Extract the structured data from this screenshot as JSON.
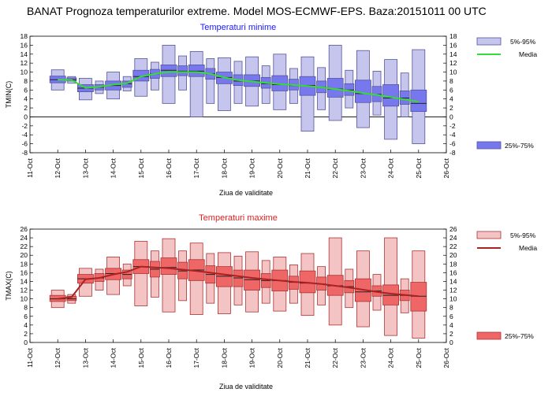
{
  "header": {
    "title": "BANAT  Prognoza temperaturilor extreme.  Model MOS-ECMWF-EPS. Baza:20151011 00 UTC"
  },
  "chart_data": [
    {
      "type": "box",
      "title": "Temperaturi minime",
      "title_color": "#1a1aff",
      "xlabel": "Ziua de validitate",
      "ylabel": "TMIN(C)",
      "x_tick_labels": [
        "11-Oct",
        "12-Oct",
        "13-Oct",
        "14-Oct",
        "15-Oct",
        "16-Oct",
        "17-Oct",
        "18-Oct",
        "19-Oct",
        "20-Oct",
        "21-Oct",
        "22-Oct",
        "23-Oct",
        "24-Oct",
        "25-Oct",
        "26-Oct"
      ],
      "ylim": [
        -8,
        18
      ],
      "y_ticks": [
        -8,
        -6,
        -4,
        -2,
        0,
        2,
        4,
        6,
        8,
        10,
        12,
        14,
        16,
        18
      ],
      "grid": false,
      "colors": {
        "light": "#c5c5ee",
        "dark": "#7777ee",
        "edge": "#555599",
        "median_line": "#33dd33"
      },
      "legend": {
        "outer_label": "5%-95%",
        "median_label": "Media",
        "inner_label": "25%-75%"
      },
      "boxes": [
        {
          "x": 12.0,
          "p5": 6.0,
          "p25": 7.6,
          "median": 8.3,
          "p75": 9.1,
          "p95": 10.5
        },
        {
          "x": 12.5,
          "p5": 7.5,
          "p25": 8.0,
          "median": 8.3,
          "p75": 8.7,
          "p95": 9.0
        },
        {
          "x": 13.0,
          "p5": 3.8,
          "p25": 5.6,
          "median": 6.4,
          "p75": 7.2,
          "p95": 8.6
        },
        {
          "x": 13.5,
          "p5": 5.2,
          "p25": 6.0,
          "median": 6.6,
          "p75": 7.2,
          "p95": 8.0
        },
        {
          "x": 14.0,
          "p5": 4.0,
          "p25": 6.0,
          "median": 7.0,
          "p75": 8.0,
          "p95": 10.0
        },
        {
          "x": 14.5,
          "p5": 5.8,
          "p25": 6.6,
          "median": 7.4,
          "p75": 8.0,
          "p95": 9.0
        },
        {
          "x": 15.0,
          "p5": 4.6,
          "p25": 8.0,
          "median": 9.0,
          "p75": 10.4,
          "p95": 13.0
        },
        {
          "x": 15.5,
          "p5": 6.0,
          "p25": 8.6,
          "median": 9.6,
          "p75": 10.6,
          "p95": 12.2
        },
        {
          "x": 16.0,
          "p5": 3.0,
          "p25": 9.0,
          "median": 10.4,
          "p75": 11.6,
          "p95": 16.0
        },
        {
          "x": 16.5,
          "p5": 6.0,
          "p25": 9.2,
          "median": 10.2,
          "p75": 11.4,
          "p95": 13.6
        },
        {
          "x": 17.0,
          "p5": 0.0,
          "p25": 9.0,
          "median": 10.2,
          "p75": 11.6,
          "p95": 14.6
        },
        {
          "x": 17.5,
          "p5": 3.0,
          "p25": 8.4,
          "median": 9.6,
          "p75": 10.8,
          "p95": 13.0
        },
        {
          "x": 18.0,
          "p5": 1.4,
          "p25": 7.4,
          "median": 8.8,
          "p75": 10.0,
          "p95": 13.2
        },
        {
          "x": 18.5,
          "p5": 3.0,
          "p25": 7.0,
          "median": 8.0,
          "p75": 9.4,
          "p95": 12.4
        },
        {
          "x": 19.0,
          "p5": 2.4,
          "p25": 6.8,
          "median": 8.0,
          "p75": 9.4,
          "p95": 13.4
        },
        {
          "x": 19.5,
          "p5": 3.0,
          "p25": 6.4,
          "median": 7.4,
          "p75": 8.8,
          "p95": 11.4
        },
        {
          "x": 20.0,
          "p5": 1.6,
          "p25": 5.8,
          "median": 7.2,
          "p75": 9.2,
          "p95": 14.0
        },
        {
          "x": 20.5,
          "p5": 3.0,
          "p25": 6.0,
          "median": 7.0,
          "p75": 8.4,
          "p95": 10.8
        },
        {
          "x": 21.0,
          "p5": -3.2,
          "p25": 4.8,
          "median": 7.0,
          "p75": 9.0,
          "p95": 13.4
        },
        {
          "x": 21.5,
          "p5": 1.6,
          "p25": 5.4,
          "median": 6.6,
          "p75": 8.0,
          "p95": 11.0
        },
        {
          "x": 22.0,
          "p5": -0.8,
          "p25": 4.4,
          "median": 6.2,
          "p75": 8.6,
          "p95": 16.0
        },
        {
          "x": 22.5,
          "p5": 2.0,
          "p25": 4.8,
          "median": 6.0,
          "p75": 7.4,
          "p95": 10.4
        },
        {
          "x": 23.0,
          "p5": -2.4,
          "p25": 3.2,
          "median": 5.2,
          "p75": 8.2,
          "p95": 14.8
        },
        {
          "x": 23.5,
          "p5": 0.4,
          "p25": 3.4,
          "median": 5.0,
          "p75": 6.8,
          "p95": 10.2
        },
        {
          "x": 24.0,
          "p5": -5.0,
          "p25": 2.4,
          "median": 4.2,
          "p75": 7.2,
          "p95": 12.8
        },
        {
          "x": 24.5,
          "p5": 0.0,
          "p25": 2.8,
          "median": 4.2,
          "p75": 5.8,
          "p95": 9.8
        },
        {
          "x": 25.0,
          "p5": -6.0,
          "p25": 1.2,
          "median": 3.0,
          "p75": 6.0,
          "p95": 15.0
        }
      ],
      "median_line": [
        {
          "x": 12.0,
          "y": 8.3
        },
        {
          "x": 12.5,
          "y": 8.2
        },
        {
          "x": 13.0,
          "y": 6.5
        },
        {
          "x": 13.5,
          "y": 6.7
        },
        {
          "x": 14.0,
          "y": 7.2
        },
        {
          "x": 14.5,
          "y": 7.5
        },
        {
          "x": 15.0,
          "y": 9.0
        },
        {
          "x": 15.5,
          "y": 9.6
        },
        {
          "x": 16.0,
          "y": 10.0
        },
        {
          "x": 16.5,
          "y": 10.0
        },
        {
          "x": 17.0,
          "y": 10.0
        },
        {
          "x": 17.5,
          "y": 9.6
        },
        {
          "x": 18.0,
          "y": 8.8
        },
        {
          "x": 18.5,
          "y": 8.2
        },
        {
          "x": 19.0,
          "y": 7.9
        },
        {
          "x": 19.5,
          "y": 7.6
        },
        {
          "x": 20.0,
          "y": 7.3
        },
        {
          "x": 20.5,
          "y": 7.1
        },
        {
          "x": 21.0,
          "y": 6.9
        },
        {
          "x": 21.5,
          "y": 6.6
        },
        {
          "x": 22.0,
          "y": 6.2
        },
        {
          "x": 22.5,
          "y": 5.8
        },
        {
          "x": 23.0,
          "y": 5.3
        },
        {
          "x": 23.5,
          "y": 4.9
        },
        {
          "x": 24.0,
          "y": 4.4
        },
        {
          "x": 24.5,
          "y": 3.9
        },
        {
          "x": 25.0,
          "y": 3.4
        }
      ]
    },
    {
      "type": "box",
      "title": "Temperaturi maxime",
      "title_color": "#dd2222",
      "xlabel": "Ziua de validitate",
      "ylabel": "TMAX(C)",
      "x_tick_labels": [
        "11-Oct",
        "12-Oct",
        "13-Oct",
        "14-Oct",
        "15-Oct",
        "16-Oct",
        "17-Oct",
        "18-Oct",
        "19-Oct",
        "20-Oct",
        "21-Oct",
        "22-Oct",
        "23-Oct",
        "24-Oct",
        "25-Oct",
        "26-Oct"
      ],
      "ylim": [
        0,
        26
      ],
      "y_ticks": [
        0,
        2,
        4,
        6,
        8,
        10,
        12,
        14,
        16,
        18,
        20,
        22,
        24,
        26
      ],
      "grid": false,
      "colors": {
        "light": "#f4c4c4",
        "dark": "#ee6666",
        "edge": "#aa3333",
        "median_line": "#aa2222"
      },
      "legend": {
        "outer_label": "5%-95%",
        "median_label": "Media",
        "inner_label": "25%-75%"
      },
      "boxes": [
        {
          "x": 12.0,
          "p5": 8.0,
          "p25": 9.4,
          "median": 10.0,
          "p75": 10.8,
          "p95": 12.0
        },
        {
          "x": 12.5,
          "p5": 9.0,
          "p25": 9.6,
          "median": 10.0,
          "p75": 10.6,
          "p95": 11.0
        },
        {
          "x": 13.0,
          "p5": 10.6,
          "p25": 13.6,
          "median": 14.6,
          "p75": 15.6,
          "p95": 17.0
        },
        {
          "x": 13.5,
          "p5": 12.0,
          "p25": 14.0,
          "median": 14.8,
          "p75": 15.8,
          "p95": 16.8
        },
        {
          "x": 14.0,
          "p5": 11.0,
          "p25": 14.4,
          "median": 15.8,
          "p75": 17.0,
          "p95": 19.6
        },
        {
          "x": 14.5,
          "p5": 13.0,
          "p25": 14.6,
          "median": 15.6,
          "p75": 16.6,
          "p95": 18.0
        },
        {
          "x": 15.0,
          "p5": 8.4,
          "p25": 15.8,
          "median": 17.4,
          "p75": 19.0,
          "p95": 23.2
        },
        {
          "x": 15.5,
          "p5": 10.4,
          "p25": 15.0,
          "median": 16.8,
          "p75": 18.6,
          "p95": 21.0
        },
        {
          "x": 16.0,
          "p5": 7.0,
          "p25": 15.6,
          "median": 17.2,
          "p75": 19.4,
          "p95": 23.8
        },
        {
          "x": 16.5,
          "p5": 9.6,
          "p25": 14.6,
          "median": 16.4,
          "p75": 18.4,
          "p95": 21.0
        },
        {
          "x": 17.0,
          "p5": 6.4,
          "p25": 14.2,
          "median": 16.6,
          "p75": 19.0,
          "p95": 22.8
        },
        {
          "x": 17.5,
          "p5": 9.0,
          "p25": 13.6,
          "median": 15.6,
          "p75": 17.6,
          "p95": 20.4
        },
        {
          "x": 18.0,
          "p5": 6.6,
          "p25": 12.8,
          "median": 15.2,
          "p75": 17.4,
          "p95": 20.6
        },
        {
          "x": 18.5,
          "p5": 8.6,
          "p25": 12.8,
          "median": 14.8,
          "p75": 16.6,
          "p95": 19.8
        },
        {
          "x": 19.0,
          "p5": 7.0,
          "p25": 12.0,
          "median": 14.4,
          "p75": 16.6,
          "p95": 20.8
        },
        {
          "x": 19.5,
          "p5": 9.0,
          "p25": 12.6,
          "median": 14.2,
          "p75": 15.8,
          "p95": 18.8
        },
        {
          "x": 20.0,
          "p5": 7.2,
          "p25": 11.8,
          "median": 14.2,
          "p75": 16.6,
          "p95": 19.6
        },
        {
          "x": 20.5,
          "p5": 9.0,
          "p25": 12.2,
          "median": 13.8,
          "p75": 15.2,
          "p95": 17.8
        },
        {
          "x": 21.0,
          "p5": 6.2,
          "p25": 11.4,
          "median": 13.6,
          "p75": 16.4,
          "p95": 20.4
        },
        {
          "x": 21.5,
          "p5": 8.6,
          "p25": 12.0,
          "median": 13.4,
          "p75": 15.0,
          "p95": 17.4
        },
        {
          "x": 22.0,
          "p5": 4.0,
          "p25": 10.8,
          "median": 13.0,
          "p75": 15.4,
          "p95": 24.0
        },
        {
          "x": 22.5,
          "p5": 8.0,
          "p25": 11.4,
          "median": 12.8,
          "p75": 14.2,
          "p95": 16.8
        },
        {
          "x": 23.0,
          "p5": 3.6,
          "p25": 9.4,
          "median": 11.6,
          "p75": 14.6,
          "p95": 21.0
        },
        {
          "x": 23.5,
          "p5": 7.4,
          "p25": 10.6,
          "median": 11.8,
          "p75": 13.0,
          "p95": 15.6
        },
        {
          "x": 24.0,
          "p5": 1.6,
          "p25": 8.6,
          "median": 10.8,
          "p75": 13.2,
          "p95": 24.0
        },
        {
          "x": 24.5,
          "p5": 6.8,
          "p25": 9.6,
          "median": 10.8,
          "p75": 12.0,
          "p95": 14.6
        },
        {
          "x": 25.0,
          "p5": 1.0,
          "p25": 7.2,
          "median": 10.6,
          "p75": 13.8,
          "p95": 21.0
        }
      ],
      "median_line": [
        {
          "x": 12.0,
          "y": 10.0
        },
        {
          "x": 12.5,
          "y": 10.4
        },
        {
          "x": 13.0,
          "y": 14.5
        },
        {
          "x": 13.5,
          "y": 14.8
        },
        {
          "x": 14.0,
          "y": 15.6
        },
        {
          "x": 14.5,
          "y": 16.2
        },
        {
          "x": 15.0,
          "y": 17.4
        },
        {
          "x": 15.5,
          "y": 17.2
        },
        {
          "x": 16.0,
          "y": 17.0
        },
        {
          "x": 16.5,
          "y": 16.7
        },
        {
          "x": 17.0,
          "y": 16.4
        },
        {
          "x": 17.5,
          "y": 16.0
        },
        {
          "x": 18.0,
          "y": 15.6
        },
        {
          "x": 18.5,
          "y": 15.2
        },
        {
          "x": 19.0,
          "y": 14.8
        },
        {
          "x": 19.5,
          "y": 14.5
        },
        {
          "x": 20.0,
          "y": 14.2
        },
        {
          "x": 20.5,
          "y": 13.9
        },
        {
          "x": 21.0,
          "y": 13.7
        },
        {
          "x": 21.5,
          "y": 13.4
        },
        {
          "x": 22.0,
          "y": 13.0
        },
        {
          "x": 22.5,
          "y": 12.6
        },
        {
          "x": 23.0,
          "y": 12.1
        },
        {
          "x": 23.5,
          "y": 11.6
        },
        {
          "x": 24.0,
          "y": 11.2
        },
        {
          "x": 24.5,
          "y": 10.9
        },
        {
          "x": 25.0,
          "y": 10.6
        }
      ]
    }
  ]
}
